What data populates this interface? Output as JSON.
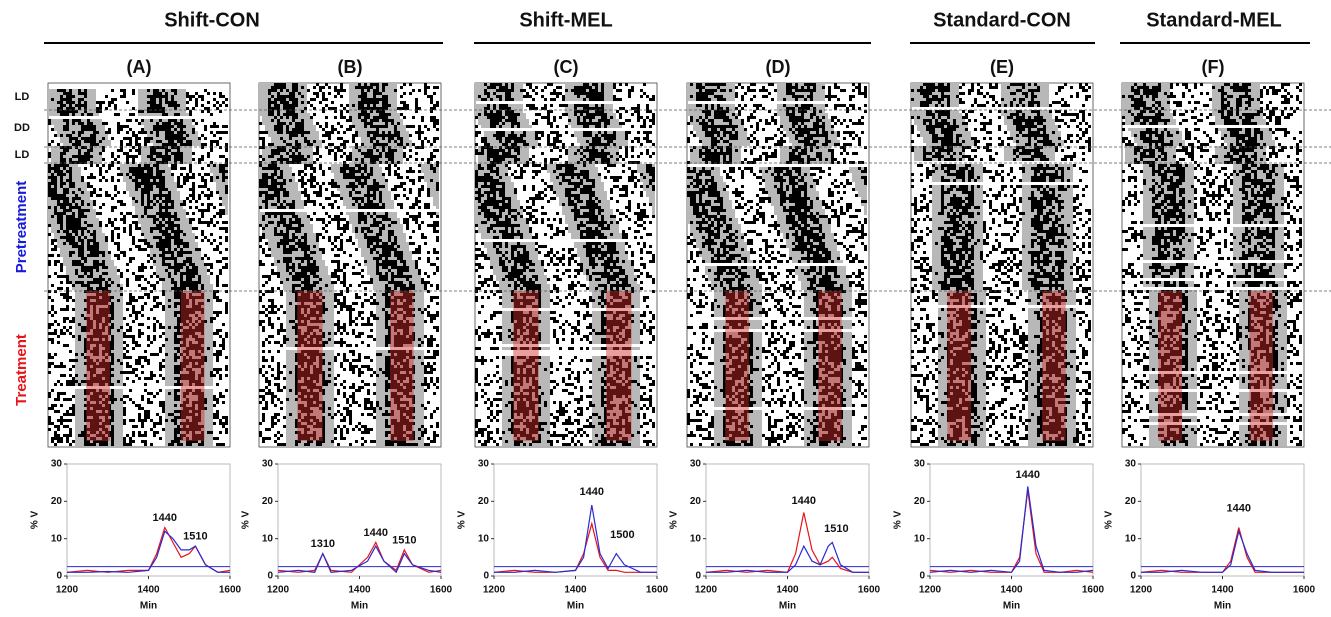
{
  "figure": {
    "groups": [
      "Shift-CON",
      "Shift-MEL",
      "Standard-CON",
      "Standard-MEL"
    ],
    "row_labels": [
      "LD",
      "DD",
      "LD",
      "Pretreatment",
      "Treatment"
    ]
  },
  "chart_data": [
    {
      "type": "line",
      "title": "(A)",
      "xlabel": "Min",
      "ylabel": "% V",
      "x": [
        1200,
        1250,
        1300,
        1350,
        1400,
        1420,
        1440,
        1460,
        1480,
        1500,
        1515,
        1540,
        1570,
        1600
      ],
      "series": [
        {
          "color": "#e8141b",
          "values": [
            1,
            1.5,
            1,
            1.5,
            1.5,
            6,
            13,
            9,
            5,
            6,
            8,
            3,
            1,
            1.5
          ]
        },
        {
          "color": "#2b2bd0",
          "values": [
            1,
            1,
            1.2,
            1,
            1.5,
            5,
            12,
            10,
            7,
            7,
            8,
            3,
            1,
            1
          ]
        }
      ],
      "threshold": 2.5,
      "threshold_color": "#2b2bd0",
      "annotations": [
        {
          "text": "1440",
          "x": 1440,
          "y": 15.5
        },
        {
          "text": "1510",
          "x": 1515,
          "y": 10.5
        }
      ],
      "xlim": [
        1200,
        1600
      ],
      "xticks": [
        1200,
        1400,
        1600
      ],
      "ylim": [
        0,
        30
      ],
      "yticks": [
        0,
        10,
        20,
        30
      ]
    },
    {
      "type": "line",
      "title": "(B)",
      "xlabel": "Min",
      "ylabel": "% V",
      "x": [
        1200,
        1250,
        1290,
        1310,
        1330,
        1380,
        1420,
        1440,
        1460,
        1490,
        1510,
        1530,
        1570,
        1600
      ],
      "series": [
        {
          "color": "#e8141b",
          "values": [
            1.5,
            1,
            1.5,
            6,
            1.5,
            1,
            5,
            9,
            4,
            1.5,
            7,
            3,
            1,
            1.5
          ]
        },
        {
          "color": "#2b2bd0",
          "values": [
            1,
            1.5,
            1,
            6,
            1,
            1.5,
            4,
            8,
            4,
            1,
            6,
            3,
            1.5,
            1
          ]
        }
      ],
      "threshold": 2.5,
      "threshold_color": "#2b2bd0",
      "annotations": [
        {
          "text": "1310",
          "x": 1310,
          "y": 8.5
        },
        {
          "text": "1440",
          "x": 1440,
          "y": 11.5
        },
        {
          "text": "1510",
          "x": 1510,
          "y": 9.5
        }
      ],
      "xlim": [
        1200,
        1600
      ],
      "xticks": [
        1200,
        1400,
        1600
      ],
      "ylim": [
        0,
        30
      ],
      "yticks": [
        0,
        10,
        20,
        30
      ]
    },
    {
      "type": "line",
      "title": "(C)",
      "xlabel": "Min",
      "ylabel": "% V",
      "x": [
        1200,
        1250,
        1300,
        1350,
        1400,
        1420,
        1440,
        1460,
        1480,
        1500,
        1520,
        1560,
        1600
      ],
      "series": [
        {
          "color": "#e8141b",
          "values": [
            1,
            1.5,
            1,
            1,
            1.5,
            6,
            14,
            5,
            1.5,
            1.5,
            1,
            1,
            1
          ]
        },
        {
          "color": "#2b2bd0",
          "values": [
            1,
            1,
            1.5,
            1,
            1.5,
            5,
            19,
            6,
            2,
            6,
            3,
            1,
            1
          ]
        }
      ],
      "threshold": 2.5,
      "threshold_color": "#2b2bd0",
      "annotations": [
        {
          "text": "1440",
          "x": 1440,
          "y": 22.5
        },
        {
          "text": "1500",
          "x": 1515,
          "y": 11
        }
      ],
      "xlim": [
        1200,
        1600
      ],
      "xticks": [
        1200,
        1400,
        1600
      ],
      "ylim": [
        0,
        30
      ],
      "yticks": [
        0,
        10,
        20,
        30
      ]
    },
    {
      "type": "line",
      "title": "(D)",
      "xlabel": "Min",
      "ylabel": "% V",
      "x": [
        1200,
        1250,
        1300,
        1350,
        1400,
        1420,
        1440,
        1460,
        1480,
        1500,
        1510,
        1530,
        1560,
        1600
      ],
      "series": [
        {
          "color": "#e8141b",
          "values": [
            1,
            1.5,
            1,
            1.5,
            1,
            6,
            17,
            7,
            3,
            4,
            5,
            2,
            1,
            1
          ]
        },
        {
          "color": "#2b2bd0",
          "values": [
            1,
            1,
            1.5,
            1,
            1,
            3,
            8,
            4,
            3,
            8,
            9,
            3,
            1,
            1
          ]
        }
      ],
      "threshold": 2.5,
      "threshold_color": "#2b2bd0",
      "annotations": [
        {
          "text": "1440",
          "x": 1440,
          "y": 20
        },
        {
          "text": "1510",
          "x": 1520,
          "y": 12.5
        }
      ],
      "xlim": [
        1200,
        1600
      ],
      "xticks": [
        1200,
        1400,
        1600
      ],
      "ylim": [
        0,
        30
      ],
      "yticks": [
        0,
        10,
        20,
        30
      ]
    },
    {
      "type": "line",
      "title": "(E)",
      "xlabel": "Min",
      "ylabel": "% V",
      "x": [
        1200,
        1250,
        1300,
        1350,
        1400,
        1420,
        1440,
        1460,
        1480,
        1520,
        1560,
        1600
      ],
      "series": [
        {
          "color": "#e8141b",
          "values": [
            1.5,
            1,
            1.5,
            1,
            1,
            5,
            23,
            6,
            1,
            1,
            1.5,
            1
          ]
        },
        {
          "color": "#2b2bd0",
          "values": [
            1,
            1.5,
            1,
            1.5,
            1,
            4,
            24,
            8,
            1.5,
            1,
            1,
            1.5
          ]
        }
      ],
      "threshold": 2.5,
      "threshold_color": "#2b2bd0",
      "annotations": [
        {
          "text": "1440",
          "x": 1440,
          "y": 27
        }
      ],
      "xlim": [
        1200,
        1600
      ],
      "xticks": [
        1200,
        1400,
        1600
      ],
      "ylim": [
        0,
        30
      ],
      "yticks": [
        0,
        10,
        20,
        30
      ]
    },
    {
      "type": "line",
      "title": "(F)",
      "xlabel": "Min",
      "ylabel": "% V",
      "x": [
        1200,
        1250,
        1300,
        1350,
        1400,
        1420,
        1440,
        1460,
        1480,
        1520,
        1560,
        1600
      ],
      "series": [
        {
          "color": "#e8141b",
          "values": [
            1,
            1.5,
            1,
            1,
            1,
            4,
            13,
            5,
            1,
            1,
            1,
            1
          ]
        },
        {
          "color": "#2b2bd0",
          "values": [
            1,
            1,
            1.5,
            1,
            1,
            3,
            12,
            6,
            1.5,
            1,
            1,
            1
          ]
        }
      ],
      "threshold": 2.5,
      "threshold_color": "#2b2bd0",
      "annotations": [
        {
          "text": "1440",
          "x": 1440,
          "y": 18
        }
      ],
      "xlim": [
        1200,
        1600
      ],
      "xticks": [
        1200,
        1400,
        1600
      ],
      "ylim": [
        0,
        30
      ],
      "yticks": [
        0,
        10,
        20,
        30
      ]
    }
  ]
}
